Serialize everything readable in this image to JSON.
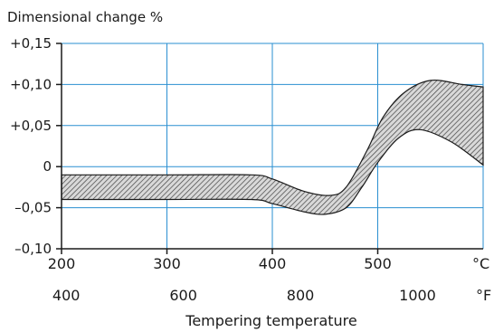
{
  "chart_data": {
    "type": "area",
    "title": "Dimensional change %",
    "xlabel": "Tempering temperature",
    "x_unit_primary": "°C",
    "x_unit_secondary": "°F",
    "xlim": [
      200,
      600
    ],
    "ylim": [
      -0.1,
      0.15
    ],
    "x_ticks_primary": [
      {
        "value": 200,
        "label": "200"
      },
      {
        "value": 300,
        "label": "300"
      },
      {
        "value": 400,
        "label": "400"
      },
      {
        "value": 500,
        "label": "500"
      }
    ],
    "x_ticks_secondary": [
      {
        "value": 400,
        "label": "400"
      },
      {
        "value": 600,
        "label": "600"
      },
      {
        "value": 800,
        "label": "800"
      },
      {
        "value": 1000,
        "label": "1000"
      }
    ],
    "y_ticks": [
      {
        "value": 0.15,
        "label": "+0,15"
      },
      {
        "value": 0.1,
        "label": "+0,10"
      },
      {
        "value": 0.05,
        "label": "+0,05"
      },
      {
        "value": 0.0,
        "label": "0"
      },
      {
        "value": -0.05,
        "label": "–0,05"
      },
      {
        "value": -0.1,
        "label": "–0,10"
      }
    ],
    "grid": true,
    "band": {
      "upper": [
        [
          200,
          -0.01
        ],
        [
          300,
          -0.01
        ],
        [
          380,
          -0.01
        ],
        [
          400,
          -0.015
        ],
        [
          430,
          -0.03
        ],
        [
          455,
          -0.035
        ],
        [
          470,
          -0.025
        ],
        [
          490,
          0.02
        ],
        [
          505,
          0.06
        ],
        [
          525,
          0.09
        ],
        [
          550,
          0.105
        ],
        [
          580,
          0.1
        ],
        [
          600,
          0.097
        ]
      ],
      "lower": [
        [
          200,
          -0.04
        ],
        [
          300,
          -0.04
        ],
        [
          380,
          -0.04
        ],
        [
          400,
          -0.045
        ],
        [
          430,
          -0.055
        ],
        [
          450,
          -0.058
        ],
        [
          470,
          -0.05
        ],
        [
          485,
          -0.025
        ],
        [
          500,
          0.005
        ],
        [
          520,
          0.035
        ],
        [
          540,
          0.045
        ],
        [
          570,
          0.03
        ],
        [
          600,
          0.002
        ]
      ]
    },
    "colors": {
      "grid": "#2a8fd1",
      "axis": "#1a1a1a",
      "band_fill": "#d9d9d9",
      "band_hatch": "#444444",
      "band_edge": "#1a1a1a"
    }
  }
}
